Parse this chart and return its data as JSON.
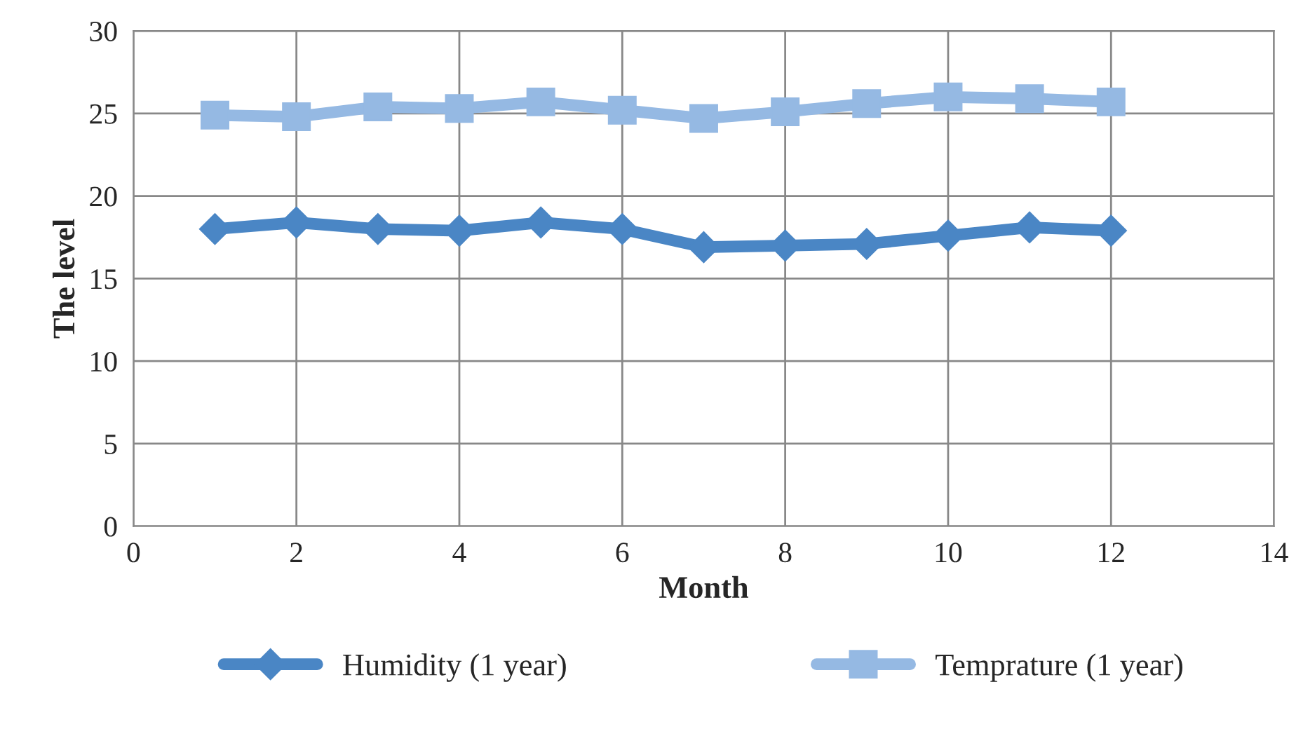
{
  "chart_data": {
    "type": "line",
    "xlabel": "Month",
    "ylabel": "The level",
    "x": [
      1,
      2,
      3,
      4,
      5,
      6,
      7,
      8,
      9,
      10,
      11,
      12
    ],
    "series": [
      {
        "name": "Humidity (1 year)",
        "color": "#4a86c5",
        "marker": "diamond",
        "values": [
          18.0,
          18.4,
          18.0,
          17.9,
          18.4,
          18.0,
          16.9,
          17.0,
          17.1,
          17.6,
          18.1,
          17.9
        ]
      },
      {
        "name": "Temprature (1 year)",
        "color": "#95b9e3",
        "marker": "square",
        "values": [
          24.9,
          24.8,
          25.4,
          25.3,
          25.7,
          25.2,
          24.7,
          25.1,
          25.6,
          26.0,
          25.9,
          25.7
        ]
      }
    ],
    "xlim": [
      0,
      14
    ],
    "xticks": [
      0,
      2,
      4,
      6,
      8,
      10,
      12,
      14
    ],
    "ylim": [
      0,
      30
    ],
    "yticks": [
      0,
      5,
      10,
      15,
      20,
      25,
      30
    ],
    "grid": true,
    "legend": "bottom",
    "line_style": "solid"
  }
}
